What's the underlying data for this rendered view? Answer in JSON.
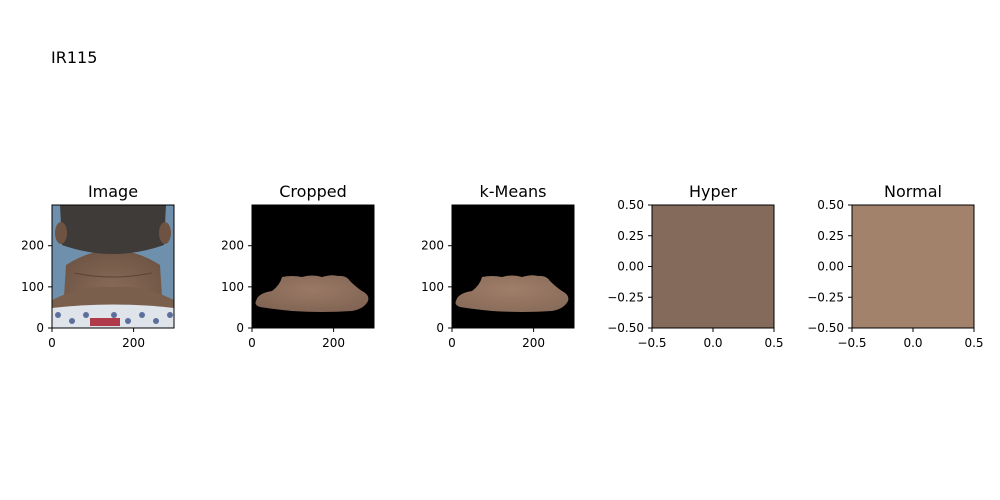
{
  "figure": {
    "title": "IR115"
  },
  "chart_data": [
    {
      "type": "image",
      "title": "Image",
      "x_ticks": [
        "0",
        "200"
      ],
      "y_ticks": [
        "0",
        "100",
        "200"
      ],
      "xlim": [
        0,
        299
      ],
      "ylim": [
        299,
        0
      ],
      "content": "photo of back of neck",
      "colors": {
        "hair": "#3f3b38",
        "skin": "#7d6250",
        "shirt": "#dfe3ea",
        "bg": "#6f90ad"
      }
    },
    {
      "type": "image",
      "title": "Cropped",
      "x_ticks": [
        "0",
        "200"
      ],
      "y_ticks": [
        "0",
        "100",
        "200"
      ],
      "xlim": [
        0,
        299
      ],
      "ylim": [
        299,
        0
      ],
      "content": "segmented skin region on black",
      "colors": {
        "bg": "#000000",
        "region": "#8e705f"
      }
    },
    {
      "type": "image",
      "title": "k-Means",
      "x_ticks": [
        "0",
        "200"
      ],
      "y_ticks": [
        "0",
        "100",
        "200"
      ],
      "xlim": [
        0,
        299
      ],
      "ylim": [
        299,
        0
      ],
      "content": "clustered skin region on black",
      "colors": {
        "bg": "#000000",
        "region": "#957561"
      }
    },
    {
      "type": "swatch",
      "title": "Hyper",
      "x_ticks": [
        "−0.5",
        "0.0",
        "0.5"
      ],
      "y_ticks": [
        "−0.50",
        "−0.25",
        "0.00",
        "0.25",
        "0.50"
      ],
      "xlim": [
        -0.5,
        0.5
      ],
      "ylim": [
        0.5,
        -0.5
      ],
      "color": "#836a5a"
    },
    {
      "type": "swatch",
      "title": "Normal",
      "x_ticks": [
        "−0.5",
        "0.0",
        "0.5"
      ],
      "y_ticks": [
        "−0.50",
        "−0.25",
        "0.00",
        "0.25",
        "0.50"
      ],
      "xlim": [
        -0.5,
        0.5
      ],
      "ylim": [
        0.5,
        -0.5
      ],
      "color": "#a3826c"
    }
  ]
}
